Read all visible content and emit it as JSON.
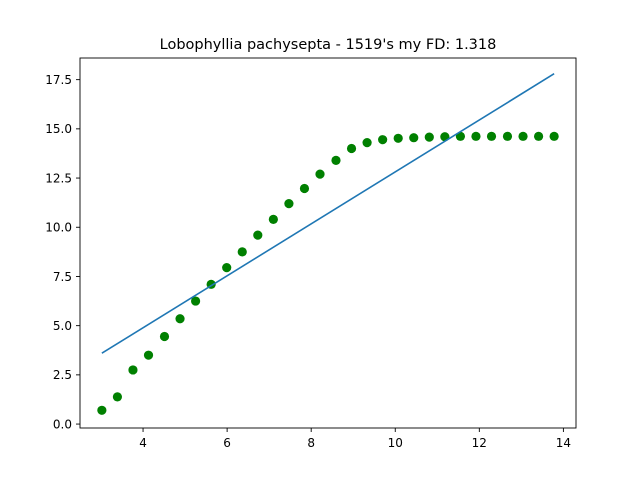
{
  "chart_data": {
    "type": "scatter",
    "title": "Lobophyllia pachysepta - 1519's my FD: 1.318",
    "xlabel": "",
    "ylabel": "",
    "xlim": [
      2.5,
      14.3
    ],
    "ylim": [
      -0.2,
      18.6
    ],
    "x_ticks": [
      4,
      6,
      8,
      10,
      12,
      14
    ],
    "x_tick_labels": [
      "4",
      "6",
      "8",
      "10",
      "12",
      "14"
    ],
    "y_ticks": [
      0.0,
      2.5,
      5.0,
      7.5,
      10.0,
      12.5,
      15.0,
      17.5
    ],
    "y_tick_labels": [
      "0.0",
      "2.5",
      "5.0",
      "7.5",
      "10.0",
      "12.5",
      "15.0",
      "17.5"
    ],
    "grid": false,
    "series": [
      {
        "kind": "scatter",
        "color": "#008000",
        "marker": "circle",
        "x": [
          3.02,
          3.39,
          3.76,
          4.13,
          4.51,
          4.88,
          5.25,
          5.62,
          5.99,
          6.36,
          6.73,
          7.1,
          7.47,
          7.84,
          8.21,
          8.59,
          8.96,
          9.33,
          9.7,
          10.07,
          10.44,
          10.81,
          11.18,
          11.55,
          11.92,
          12.29,
          12.67,
          13.04,
          13.41,
          13.78
        ],
        "y": [
          0.7,
          1.38,
          2.75,
          3.5,
          4.45,
          5.35,
          6.25,
          7.1,
          7.95,
          8.75,
          9.6,
          10.4,
          11.2,
          11.97,
          12.7,
          13.4,
          14.0,
          14.3,
          14.45,
          14.52,
          14.55,
          14.58,
          14.6,
          14.62,
          14.62,
          14.62,
          14.62,
          14.62,
          14.62,
          14.62
        ]
      },
      {
        "kind": "line",
        "color": "#1f77b4",
        "x": [
          3.02,
          13.78
        ],
        "y": [
          3.6,
          17.8
        ]
      }
    ]
  }
}
